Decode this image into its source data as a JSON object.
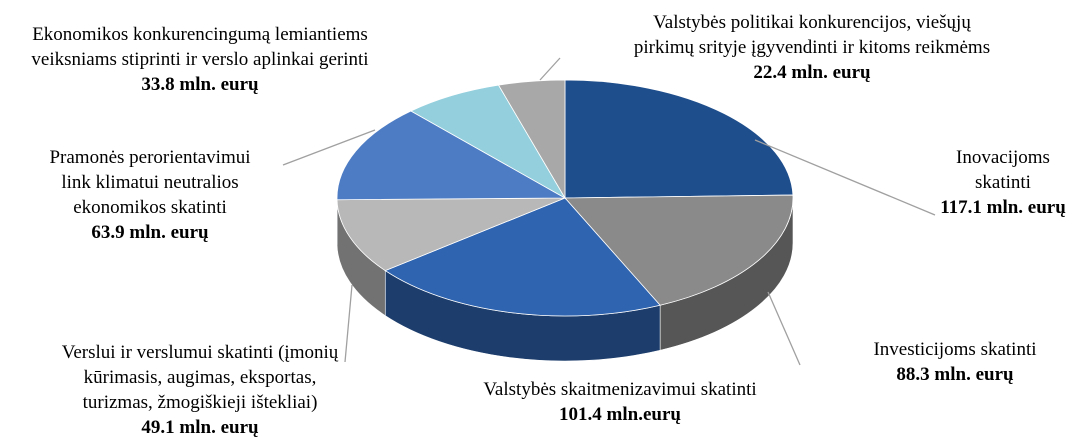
{
  "chart_data": {
    "type": "pie3d",
    "categories": [
      [
        "Inovacijoms",
        "skatinti"
      ],
      [
        "Investicijoms skatinti"
      ],
      [
        "Valstybės skaitmenizavimui skatinti"
      ],
      [
        "Verslui ir verslumui skatinti (įmonių",
        "kūrimasis, augimas, eksportas,",
        "turizmas, žmogiškieji ištekliai)"
      ],
      [
        "Pramonės perorientavimui",
        "link klimatui neutralios",
        "ekonomikos skatinti"
      ],
      [
        "Ekonomikos konkurencingumą lemiantiems",
        "veiksniams stiprinti ir verslo aplinkai gerinti"
      ],
      [
        "Valstybės politikai konkurencijos, viešųjų",
        "pirkimų srityje įgyvendinti ir kitoms reikmėms"
      ]
    ],
    "values": [
      117.1,
      88.3,
      101.4,
      49.1,
      63.9,
      33.8,
      22.4
    ],
    "value_labels": [
      "117.1 mln. eurų",
      "88.3 mln. eurų",
      "101.4 mln.eurų",
      "49.1 mln. eurų",
      "63.9 mln. eurų",
      "33.8 mln. eurų",
      "22.4 mln. eurų"
    ],
    "colors": [
      "#1f4e8c",
      "#8a8a8a",
      "#2f64b0",
      "#b8b8b8",
      "#4d7cc4",
      "#93cfdd",
      "#a8a8a8"
    ]
  }
}
